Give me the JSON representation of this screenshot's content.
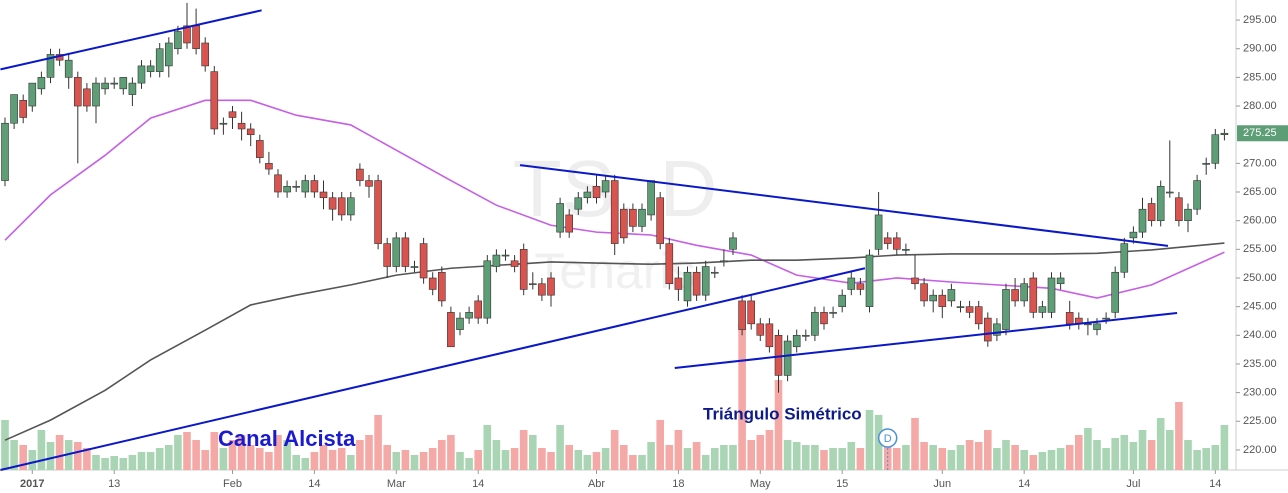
{
  "chart_data": {
    "type": "candlestick",
    "watermark": "TS, D",
    "watermark_sub": "Tenaris",
    "candles": [
      [
        267,
        278,
        266,
        277
      ],
      [
        277,
        282,
        276,
        282
      ],
      [
        281,
        282,
        277,
        278
      ],
      [
        280,
        284,
        279,
        284
      ],
      [
        283,
        286,
        282,
        285
      ],
      [
        285,
        290,
        284,
        289
      ],
      [
        289,
        290,
        287,
        288
      ],
      [
        285,
        289,
        283,
        288
      ],
      [
        285,
        286,
        270,
        280
      ],
      [
        283,
        284,
        279,
        280
      ],
      [
        280,
        285,
        277,
        284
      ],
      [
        283,
        285,
        282,
        284
      ],
      [
        284,
        285,
        283,
        284
      ],
      [
        283,
        285,
        282,
        285
      ],
      [
        282,
        285,
        280,
        284
      ],
      [
        284,
        288,
        283,
        287
      ],
      [
        286,
        288,
        285,
        287
      ],
      [
        286,
        291,
        285,
        290
      ],
      [
        287,
        292,
        285,
        291
      ],
      [
        290,
        294,
        289,
        293
      ],
      [
        294,
        298,
        290,
        291
      ],
      [
        294,
        297,
        289,
        290
      ],
      [
        291,
        292,
        286,
        287
      ],
      [
        286,
        287,
        275,
        276
      ],
      [
        277,
        278,
        275,
        277
      ],
      [
        279,
        280,
        276,
        278
      ],
      [
        277,
        279,
        274,
        276
      ],
      [
        276,
        277,
        273,
        275
      ],
      [
        274,
        275,
        270,
        271
      ],
      [
        270,
        272,
        268,
        269
      ],
      [
        268,
        269,
        264,
        265
      ],
      [
        265,
        267,
        264,
        266
      ],
      [
        266,
        267,
        265,
        266
      ],
      [
        265,
        268,
        264,
        267
      ],
      [
        267,
        268,
        264,
        265
      ],
      [
        265,
        267,
        262,
        264
      ],
      [
        264,
        265,
        260,
        262
      ],
      [
        264,
        265,
        260,
        261
      ],
      [
        261,
        265,
        260,
        264
      ],
      [
        269,
        270,
        266,
        267
      ],
      [
        267,
        268,
        264,
        266
      ],
      [
        267,
        268,
        255,
        256
      ],
      [
        256,
        257,
        250,
        252
      ],
      [
        252,
        258,
        251,
        257
      ],
      [
        257,
        258,
        251,
        252
      ],
      [
        252,
        253,
        251,
        252
      ],
      [
        256,
        257,
        249,
        250
      ],
      [
        250,
        251,
        247,
        248
      ],
      [
        251,
        252,
        245,
        246
      ],
      [
        244,
        245,
        238,
        238
      ],
      [
        241,
        244,
        240,
        243
      ],
      [
        243,
        245,
        242,
        244
      ],
      [
        246,
        247,
        242,
        243
      ],
      [
        243,
        254,
        242,
        253
      ],
      [
        252,
        255,
        251,
        254
      ],
      [
        254,
        255,
        253,
        254
      ],
      [
        253,
        254,
        251,
        252
      ],
      [
        255,
        256,
        247,
        248
      ],
      [
        249,
        251,
        248,
        249
      ],
      [
        249,
        250,
        246,
        247
      ],
      [
        250,
        251,
        245,
        247
      ],
      [
        258,
        264,
        257,
        263
      ],
      [
        261,
        262,
        257,
        258
      ],
      [
        262,
        265,
        261,
        264
      ],
      [
        264,
        266,
        263,
        265
      ],
      [
        266,
        268,
        263,
        264
      ],
      [
        265,
        268,
        264,
        267
      ],
      [
        267,
        268,
        254,
        256
      ],
      [
        262,
        263,
        256,
        257
      ],
      [
        262,
        263,
        258,
        259
      ],
      [
        259,
        263,
        258,
        262
      ],
      [
        261,
        267,
        260,
        267
      ],
      [
        264,
        265,
        255,
        256
      ],
      [
        256,
        257,
        248,
        249
      ],
      [
        250,
        252,
        246,
        248
      ],
      [
        246,
        252,
        245,
        251
      ],
      [
        251,
        252,
        246,
        247
      ],
      [
        247,
        253,
        246,
        252
      ],
      [
        251,
        252,
        250,
        251
      ],
      [
        253,
        255,
        252,
        253
      ],
      [
        255,
        258,
        254,
        257
      ],
      [
        246,
        247,
        240,
        241
      ],
      [
        246,
        247,
        241,
        242
      ],
      [
        242,
        243,
        239,
        240
      ],
      [
        242,
        243,
        237,
        238
      ],
      [
        240,
        241,
        230,
        233
      ],
      [
        233,
        240,
        232,
        239
      ],
      [
        238,
        241,
        237,
        240
      ],
      [
        240,
        241,
        239,
        240
      ],
      [
        240,
        245,
        239,
        244
      ],
      [
        244,
        245,
        241,
        242
      ],
      [
        244,
        245,
        243,
        244
      ],
      [
        245,
        248,
        244,
        247
      ],
      [
        248,
        251,
        247,
        250
      ],
      [
        249,
        250,
        247,
        248
      ],
      [
        245,
        255,
        244,
        254
      ],
      [
        255,
        265,
        254,
        261
      ],
      [
        257,
        258,
        255,
        256
      ],
      [
        257,
        258,
        254,
        255
      ],
      [
        255,
        256,
        254,
        255
      ],
      [
        250,
        254,
        248,
        249
      ],
      [
        249,
        250,
        245,
        246
      ],
      [
        246,
        248,
        244,
        247
      ],
      [
        247,
        248,
        243,
        245
      ],
      [
        246,
        249,
        245,
        248
      ],
      [
        245,
        246,
        244,
        245
      ],
      [
        245,
        246,
        243,
        244
      ],
      [
        245,
        246,
        241,
        242
      ],
      [
        243,
        244,
        238,
        239
      ],
      [
        240,
        243,
        239,
        242
      ],
      [
        241,
        249,
        240,
        248
      ],
      [
        248,
        250,
        245,
        246
      ],
      [
        246,
        250,
        245,
        249
      ],
      [
        250,
        251,
        243,
        244
      ],
      [
        244,
        246,
        243,
        245
      ],
      [
        244,
        251,
        243,
        250
      ],
      [
        249,
        251,
        248,
        250
      ],
      [
        244,
        246,
        241,
        242
      ],
      [
        243,
        244,
        241,
        242
      ],
      [
        242,
        243,
        240,
        242
      ],
      [
        241,
        243,
        240,
        242
      ],
      [
        243,
        244,
        242,
        243
      ],
      [
        244,
        252,
        243,
        251
      ],
      [
        251,
        257,
        250,
        256
      ],
      [
        257,
        259,
        256,
        258
      ],
      [
        258,
        264,
        257,
        262
      ],
      [
        263,
        264,
        259,
        260
      ],
      [
        260,
        267,
        259,
        266
      ],
      [
        265,
        274,
        264,
        265
      ],
      [
        264,
        265,
        259,
        260
      ],
      [
        260,
        263,
        258,
        262
      ],
      [
        262,
        268,
        261,
        267
      ],
      [
        270,
        271,
        268,
        270
      ],
      [
        270,
        276,
        269,
        275
      ],
      [
        275,
        276,
        274,
        275.25
      ]
    ],
    "volume": [
      50,
      30,
      25,
      20,
      40,
      28,
      35,
      30,
      28,
      22,
      15,
      12,
      14,
      12,
      15,
      18,
      18,
      22,
      25,
      35,
      38,
      30,
      20,
      38,
      22,
      30,
      35,
      25,
      22,
      18,
      35,
      30,
      15,
      12,
      18,
      25,
      20,
      22,
      15,
      30,
      35,
      55,
      25,
      18,
      20,
      15,
      18,
      22,
      30,
      35,
      18,
      12,
      20,
      45,
      30,
      20,
      22,
      40,
      35,
      22,
      18,
      45,
      25,
      20,
      15,
      18,
      22,
      40,
      25,
      15,
      15,
      28,
      50,
      25,
      40,
      22,
      28,
      15,
      22,
      25,
      25,
      148,
      30,
      35,
      40,
      90,
      30,
      28,
      25,
      25,
      20,
      22,
      22,
      28,
      22,
      60,
      55,
      40,
      22,
      25,
      52,
      28,
      25,
      22,
      20,
      25,
      30,
      28,
      40,
      22,
      30,
      25,
      20,
      15,
      18,
      20,
      22,
      25,
      35,
      42,
      30,
      22,
      32,
      35,
      28,
      40,
      30,
      52,
      40,
      68,
      30,
      20,
      22,
      25,
      45
    ],
    "up_color": "#5d9e77",
    "down_color": "#d9534f",
    "volume_up_color": "#a9d5b4",
    "volume_down_color": "#f4a9a6",
    "ylim": [
      216.5,
      298.5
    ],
    "yticks": [
      {
        "value": 220,
        "label": "220.00"
      },
      {
        "value": 225,
        "label": "225.00"
      },
      {
        "value": 230,
        "label": "230.00"
      },
      {
        "value": 235,
        "label": "235.00"
      },
      {
        "value": 240,
        "label": "240.00"
      },
      {
        "value": 245,
        "label": "245.00"
      },
      {
        "value": 250,
        "label": "250.00"
      },
      {
        "value": 255,
        "label": "255.00"
      },
      {
        "value": 260,
        "label": "260.00"
      },
      {
        "value": 265,
        "label": "265.00"
      },
      {
        "value": 270,
        "label": "270.00"
      },
      {
        "value": 280,
        "label": "280.00"
      },
      {
        "value": 285,
        "label": "285.00"
      },
      {
        "value": 290,
        "label": "290.00"
      },
      {
        "value": 295,
        "label": "295.00"
      }
    ],
    "last_price": 275.25,
    "xticks": [
      {
        "value": 3,
        "label": "2017"
      },
      {
        "value": 12,
        "label": "13"
      },
      {
        "value": 25,
        "label": "Feb"
      },
      {
        "value": 34,
        "label": "14"
      },
      {
        "value": 43,
        "label": "Mar"
      },
      {
        "value": 52,
        "label": "14"
      },
      {
        "value": 65,
        "label": "Abr"
      },
      {
        "value": 74,
        "label": "18"
      },
      {
        "value": 83,
        "label": "May"
      },
      {
        "value": 92,
        "label": "15"
      },
      {
        "value": 103,
        "label": "Jun"
      },
      {
        "value": 112,
        "label": "14"
      },
      {
        "value": 124,
        "label": "Jul"
      },
      {
        "value": 133,
        "label": "14"
      }
    ],
    "moving_averages": [
      {
        "color": "#c65fe6",
        "x": [
          0,
          5,
          11,
          16,
          22,
          27,
          32,
          38,
          43,
          49,
          54,
          60,
          65,
          71,
          76,
          82,
          87,
          93,
          98,
          104,
          109,
          115,
          120,
          126,
          134
        ],
        "values": [
          256.6,
          264.5,
          271.4,
          277.9,
          281,
          281,
          278.4,
          276.7,
          272.3,
          267,
          262.7,
          259.2,
          258,
          257.5,
          255.7,
          254,
          250.5,
          249.1,
          250,
          249.3,
          248.8,
          248.2,
          246.5,
          248.8,
          254.5
        ]
      },
      {
        "color": "#555555",
        "x": [
          0,
          5,
          11,
          16,
          22,
          27,
          32,
          38,
          43,
          49,
          54,
          60,
          65,
          71,
          76,
          82,
          87,
          93,
          98,
          104,
          109,
          115,
          120,
          126,
          134
        ],
        "values": [
          221.7,
          225.2,
          230.4,
          235.7,
          240.9,
          245.3,
          247,
          248.8,
          250.5,
          251.7,
          252.2,
          252.8,
          252.6,
          252.4,
          252.6,
          253.1,
          253.1,
          253.5,
          254,
          254.2,
          254.2,
          254.2,
          254.3,
          254.9,
          256.1
        ]
      }
    ],
    "trendline_color": "#0a18c8",
    "trendlines": [
      {
        "x": [
          -0.5,
          28.2
        ],
        "values": [
          286.4,
          296.7
        ]
      },
      {
        "x": [
          -0.5,
          94.5
        ],
        "values": [
          216.5,
          251.7
        ]
      },
      {
        "x": [
          56.6,
          127.8
        ],
        "values": [
          269.7,
          255.6
        ]
      },
      {
        "x": [
          73.6,
          128.8
        ],
        "values": [
          234.3,
          243.9
        ]
      }
    ],
    "annotations": [
      "Canal Alcista",
      "Triángulo Simétrico"
    ],
    "event_marker": "D",
    "grid": false
  }
}
